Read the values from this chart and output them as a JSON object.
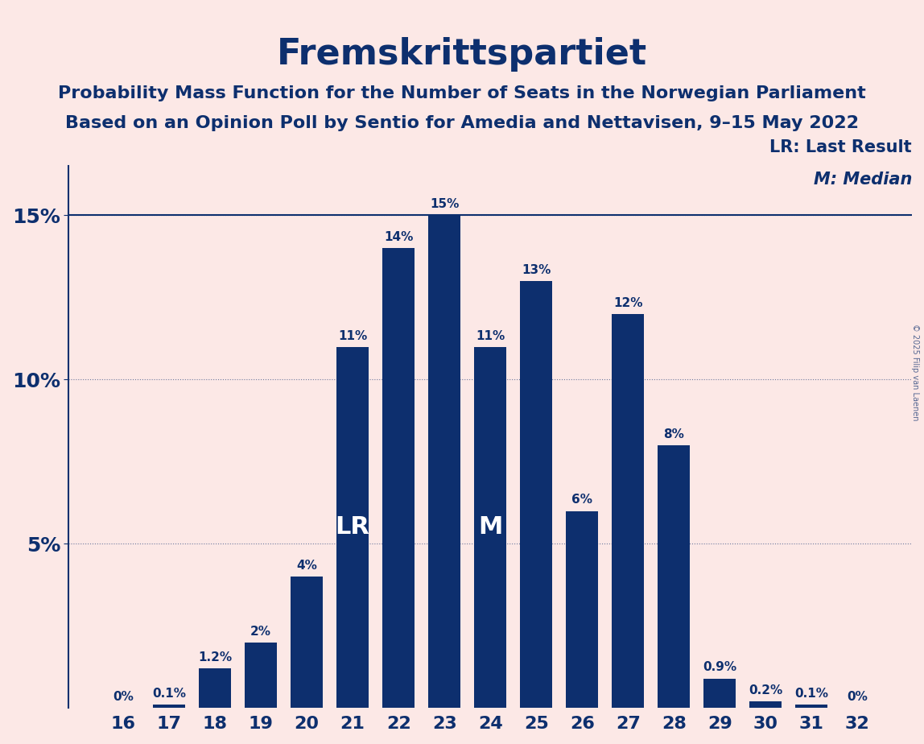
{
  "title": "Fremskrittspartiet",
  "subtitle1": "Probability Mass Function for the Number of Seats in the Norwegian Parliament",
  "subtitle2": "Based on an Opinion Poll by Sentio for Amedia and Nettavisen, 9–15 May 2022",
  "copyright": "© 2025 Filip van Laenen",
  "categories": [
    16,
    17,
    18,
    19,
    20,
    21,
    22,
    23,
    24,
    25,
    26,
    27,
    28,
    29,
    30,
    31,
    32
  ],
  "values": [
    0.0,
    0.1,
    1.2,
    2.0,
    4.0,
    11.0,
    14.0,
    15.0,
    11.0,
    13.0,
    6.0,
    12.0,
    8.0,
    0.9,
    0.2,
    0.1,
    0.0
  ],
  "bar_color": "#0d2f6e",
  "background_color": "#fce8e6",
  "text_color": "#0d2f6e",
  "bar_labels": [
    "0%",
    "0.1%",
    "1.2%",
    "2%",
    "4%",
    "11%",
    "14%",
    "15%",
    "11%",
    "13%",
    "6%",
    "12%",
    "8%",
    "0.9%",
    "0.2%",
    "0.1%",
    "0%"
  ],
  "lr_seat": 21,
  "median_seat": 24,
  "lr_label": "LR",
  "median_label": "M",
  "legend_lr": "LR: Last Result",
  "legend_m": "M: Median",
  "ylim": [
    0,
    16.5
  ],
  "yticks": [
    0,
    5,
    10,
    15
  ],
  "ytick_labels": [
    "",
    "5%",
    "10%",
    "15%"
  ],
  "grid_color": "#0d2f6e",
  "horizontal_line_y": 15.0,
  "horizontal_line_color": "#0d2f6e"
}
